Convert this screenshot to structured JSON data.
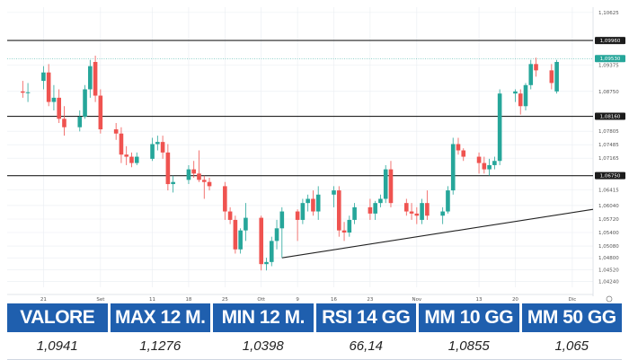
{
  "chart_data": {
    "type": "candlestick",
    "y_ticks": [
      "1,10625",
      "1,09960",
      "1,09375",
      "1,08750",
      "1,08160",
      "1,07805",
      "1,07485",
      "1,07165",
      "1,06750",
      "1,06415",
      "1,06040",
      "1,05720",
      "1,05400",
      "1,05080",
      "1,04800",
      "1,04520",
      "1,04240"
    ],
    "x_ticks": [
      "21",
      "Set",
      "11",
      "18",
      "25",
      "Ott",
      "9",
      "16",
      "23",
      "Nov",
      "13",
      "20",
      "Dic"
    ],
    "price_tag": "1,09530",
    "levels": [
      {
        "label": "1,09960",
        "value": 1.0996,
        "color": "#222222"
      },
      {
        "label": "1,08160",
        "value": 1.0816,
        "color": "#222222"
      },
      {
        "label": "1,06750",
        "value": 1.0675,
        "color": "#222222"
      }
    ],
    "trendline": [
      {
        "date": "2023-10-06",
        "value": 1.048
      },
      {
        "date": "2023-12-05",
        "value": 1.0595
      }
    ],
    "candles": [
      {
        "date": "2023-08-17",
        "o": 1.0875,
        "h": 1.09,
        "l": 1.086,
        "c": 1.0872
      },
      {
        "date": "2023-08-18",
        "o": 1.0872,
        "h": 1.0895,
        "l": 1.085,
        "c": 1.0873
      },
      {
        "date": "2023-08-21",
        "o": 1.09,
        "h": 1.0935,
        "l": 1.088,
        "c": 1.092
      },
      {
        "date": "2023-08-22",
        "o": 1.092,
        "h": 1.094,
        "l": 1.084,
        "c": 1.085
      },
      {
        "date": "2023-08-23",
        "o": 1.085,
        "h": 1.089,
        "l": 1.083,
        "c": 1.086
      },
      {
        "date": "2023-08-24",
        "o": 1.086,
        "h": 1.088,
        "l": 1.08,
        "c": 1.081
      },
      {
        "date": "2023-08-25",
        "o": 1.081,
        "h": 1.084,
        "l": 1.077,
        "c": 1.079
      },
      {
        "date": "2023-08-28",
        "o": 1.079,
        "h": 1.083,
        "l": 1.078,
        "c": 1.0815
      },
      {
        "date": "2023-08-29",
        "o": 1.0815,
        "h": 1.089,
        "l": 1.081,
        "c": 1.088
      },
      {
        "date": "2023-08-30",
        "o": 1.088,
        "h": 1.095,
        "l": 1.086,
        "c": 1.0935
      },
      {
        "date": "2023-08-31",
        "o": 1.0945,
        "h": 1.096,
        "l": 1.085,
        "c": 1.0865
      },
      {
        "date": "2023-09-01",
        "o": 1.0865,
        "h": 1.088,
        "l": 1.0775,
        "c": 1.0785
      },
      {
        "date": "2023-09-04",
        "o": 1.0785,
        "h": 1.08,
        "l": 1.076,
        "c": 1.0775
      },
      {
        "date": "2023-09-05",
        "o": 1.0775,
        "h": 1.079,
        "l": 1.0705,
        "c": 1.0725
      },
      {
        "date": "2023-09-06",
        "o": 1.0725,
        "h": 1.0745,
        "l": 1.07,
        "c": 1.072
      },
      {
        "date": "2023-09-07",
        "o": 1.072,
        "h": 1.073,
        "l": 1.0695,
        "c": 1.0705
      },
      {
        "date": "2023-09-08",
        "o": 1.0705,
        "h": 1.073,
        "l": 1.07,
        "c": 1.072
      },
      {
        "date": "2023-09-11",
        "o": 1.0715,
        "h": 1.0765,
        "l": 1.071,
        "c": 1.075
      },
      {
        "date": "2023-09-12",
        "o": 1.075,
        "h": 1.077,
        "l": 1.0735,
        "c": 1.0755
      },
      {
        "date": "2023-09-13",
        "o": 1.0755,
        "h": 1.077,
        "l": 1.0715,
        "c": 1.073
      },
      {
        "date": "2023-09-14",
        "o": 1.073,
        "h": 1.075,
        "l": 1.064,
        "c": 1.0655
      },
      {
        "date": "2023-09-15",
        "o": 1.0655,
        "h": 1.0675,
        "l": 1.0635,
        "c": 1.066
      },
      {
        "date": "2023-09-18",
        "o": 1.0665,
        "h": 1.07,
        "l": 1.0655,
        "c": 1.069
      },
      {
        "date": "2023-09-19",
        "o": 1.069,
        "h": 1.071,
        "l": 1.067,
        "c": 1.068
      },
      {
        "date": "2023-09-20",
        "o": 1.068,
        "h": 1.0735,
        "l": 1.066,
        "c": 1.0665
      },
      {
        "date": "2023-09-21",
        "o": 1.0665,
        "h": 1.0675,
        "l": 1.062,
        "c": 1.066
      },
      {
        "date": "2023-09-22",
        "o": 1.066,
        "h": 1.067,
        "l": 1.064,
        "c": 1.065
      },
      {
        "date": "2023-09-25",
        "o": 1.065,
        "h": 1.066,
        "l": 1.057,
        "c": 1.059
      },
      {
        "date": "2023-09-26",
        "o": 1.059,
        "h": 1.06,
        "l": 1.056,
        "c": 1.057
      },
      {
        "date": "2023-09-27",
        "o": 1.057,
        "h": 1.058,
        "l": 1.049,
        "c": 1.05
      },
      {
        "date": "2023-09-28",
        "o": 1.05,
        "h": 1.055,
        "l": 1.049,
        "c": 1.0545
      },
      {
        "date": "2023-09-29",
        "o": 1.0545,
        "h": 1.061,
        "l": 1.052,
        "c": 1.0575
      },
      {
        "date": "2023-10-02",
        "o": 1.0575,
        "h": 1.058,
        "l": 1.045,
        "c": 1.0465
      },
      {
        "date": "2023-10-03",
        "o": 1.0465,
        "h": 1.048,
        "l": 1.045,
        "c": 1.047
      },
      {
        "date": "2023-10-04",
        "o": 1.047,
        "h": 1.053,
        "l": 1.046,
        "c": 1.052
      },
      {
        "date": "2023-10-05",
        "o": 1.052,
        "h": 1.057,
        "l": 1.05,
        "c": 1.055
      },
      {
        "date": "2023-10-06",
        "o": 1.055,
        "h": 1.06,
        "l": 1.048,
        "c": 1.059
      },
      {
        "date": "2023-10-09",
        "o": 1.059,
        "h": 1.0595,
        "l": 1.052,
        "c": 1.057
      },
      {
        "date": "2023-10-10",
        "o": 1.057,
        "h": 1.062,
        "l": 1.056,
        "c": 1.061
      },
      {
        "date": "2023-10-11",
        "o": 1.061,
        "h": 1.063,
        "l": 1.059,
        "c": 1.062
      },
      {
        "date": "2023-10-12",
        "o": 1.062,
        "h": 1.064,
        "l": 1.058,
        "c": 1.059
      },
      {
        "date": "2023-10-13",
        "o": 1.059,
        "h": 1.065,
        "l": 1.057,
        "c": 1.063
      },
      {
        "date": "2023-10-16",
        "o": 1.063,
        "h": 1.065,
        "l": 1.06,
        "c": 1.064
      },
      {
        "date": "2023-10-17",
        "o": 1.064,
        "h": 1.065,
        "l": 1.053,
        "c": 1.0545
      },
      {
        "date": "2023-10-18",
        "o": 1.0545,
        "h": 1.0565,
        "l": 1.052,
        "c": 1.054
      },
      {
        "date": "2023-10-19",
        "o": 1.054,
        "h": 1.058,
        "l": 1.053,
        "c": 1.057
      },
      {
        "date": "2023-10-20",
        "o": 1.057,
        "h": 1.061,
        "l": 1.056,
        "c": 1.06
      },
      {
        "date": "2023-10-23",
        "o": 1.06,
        "h": 1.062,
        "l": 1.057,
        "c": 1.0585
      },
      {
        "date": "2023-10-24",
        "o": 1.0585,
        "h": 1.0615,
        "l": 1.057,
        "c": 1.061
      },
      {
        "date": "2023-10-25",
        "o": 1.061,
        "h": 1.063,
        "l": 1.06,
        "c": 1.062
      },
      {
        "date": "2023-10-26",
        "o": 1.062,
        "h": 1.07,
        "l": 1.061,
        "c": 1.069
      },
      {
        "date": "2023-10-27",
        "o": 1.069,
        "h": 1.071,
        "l": 1.06,
        "c": 1.061
      },
      {
        "date": "2023-10-30",
        "o": 1.061,
        "h": 1.062,
        "l": 1.058,
        "c": 1.059
      },
      {
        "date": "2023-10-31",
        "o": 1.059,
        "h": 1.061,
        "l": 1.057,
        "c": 1.0585
      },
      {
        "date": "2023-11-01",
        "o": 1.0585,
        "h": 1.06,
        "l": 1.056,
        "c": 1.058
      },
      {
        "date": "2023-11-02",
        "o": 1.057,
        "h": 1.062,
        "l": 1.056,
        "c": 1.061
      },
      {
        "date": "2023-11-03",
        "o": 1.061,
        "h": 1.064,
        "l": 1.057,
        "c": 1.058
      },
      {
        "date": "2023-11-06",
        "o": 1.058,
        "h": 1.06,
        "l": 1.056,
        "c": 1.059
      },
      {
        "date": "2023-11-07",
        "o": 1.059,
        "h": 1.065,
        "l": 1.0585,
        "c": 1.064
      },
      {
        "date": "2023-11-08",
        "o": 1.064,
        "h": 1.0765,
        "l": 1.063,
        "c": 1.075
      },
      {
        "date": "2023-11-09",
        "o": 1.075,
        "h": 1.0765,
        "l": 1.0725,
        "c": 1.0735
      },
      {
        "date": "2023-11-10",
        "o": 1.0735,
        "h": 1.074,
        "l": 1.071,
        "c": 1.072
      },
      {
        "date": "2023-11-13",
        "o": 1.072,
        "h": 1.073,
        "l": 1.068,
        "c": 1.0705
      },
      {
        "date": "2023-11-14",
        "o": 1.0705,
        "h": 1.072,
        "l": 1.068,
        "c": 1.069
      },
      {
        "date": "2023-11-15",
        "o": 1.069,
        "h": 1.0715,
        "l": 1.0675,
        "c": 1.07
      },
      {
        "date": "2023-11-16",
        "o": 1.07,
        "h": 1.072,
        "l": 1.069,
        "c": 1.071
      },
      {
        "date": "2023-11-17",
        "o": 1.071,
        "h": 1.088,
        "l": 1.07,
        "c": 1.087
      },
      {
        "date": "2023-11-20",
        "o": 1.087,
        "h": 1.088,
        "l": 1.085,
        "c": 1.0875
      },
      {
        "date": "2023-11-21",
        "o": 1.087,
        "h": 1.088,
        "l": 1.082,
        "c": 1.084
      },
      {
        "date": "2023-11-22",
        "o": 1.084,
        "h": 1.0895,
        "l": 1.083,
        "c": 1.089
      },
      {
        "date": "2023-11-23",
        "o": 1.089,
        "h": 1.095,
        "l": 1.088,
        "c": 1.094
      },
      {
        "date": "2023-11-24",
        "o": 1.094,
        "h": 1.0955,
        "l": 1.091,
        "c": 1.0925
      },
      {
        "date": "2023-11-27",
        "o": 1.0925,
        "h": 1.094,
        "l": 1.088,
        "c": 1.0895
      },
      {
        "date": "2023-11-28",
        "o": 1.0875,
        "h": 1.095,
        "l": 1.087,
        "c": 1.0945
      }
    ]
  },
  "table": {
    "headers": [
      "VALORE",
      "MAX 12 M.",
      "MIN 12 M.",
      "RSI 14 GG",
      "MM 10 GG",
      "MM 50 GG"
    ],
    "values": [
      "1,0941",
      "1,1276",
      "1,0398",
      "66,14",
      "1,0855",
      "1,065"
    ]
  },
  "colors": {
    "up": "#26a69a",
    "down": "#ef5350",
    "header_bg": "#1f5fae",
    "grid": "#e9edf2"
  }
}
